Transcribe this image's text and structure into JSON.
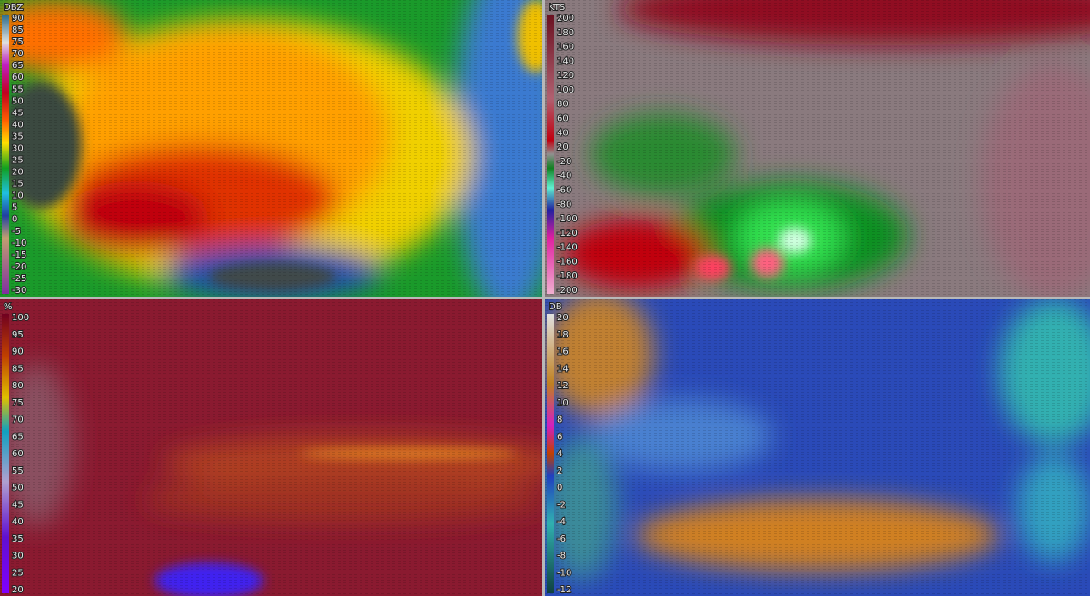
{
  "panels": [
    {
      "unit": "DBZ",
      "scale": [
        90,
        85,
        75,
        70,
        65,
        60,
        55,
        50,
        45,
        40,
        35,
        30,
        25,
        20,
        15,
        10,
        5,
        0,
        -5,
        -10,
        -15,
        -20,
        -25,
        -30
      ]
    },
    {
      "unit": "KTS",
      "scale": [
        200,
        180,
        160,
        140,
        120,
        100,
        80,
        60,
        40,
        20,
        -20,
        -40,
        -60,
        -80,
        -100,
        -120,
        -140,
        -160,
        -180,
        -200
      ]
    },
    {
      "unit": "%",
      "scale": [
        100,
        95,
        90,
        85,
        80,
        75,
        70,
        65,
        60,
        55,
        50,
        45,
        40,
        35,
        30,
        25,
        20
      ]
    },
    {
      "unit": "DB",
      "scale": [
        20,
        18,
        16,
        14,
        12,
        10,
        8,
        6,
        4,
        2,
        0,
        -2,
        -4,
        -6,
        -8,
        -10,
        -12
      ]
    }
  ]
}
